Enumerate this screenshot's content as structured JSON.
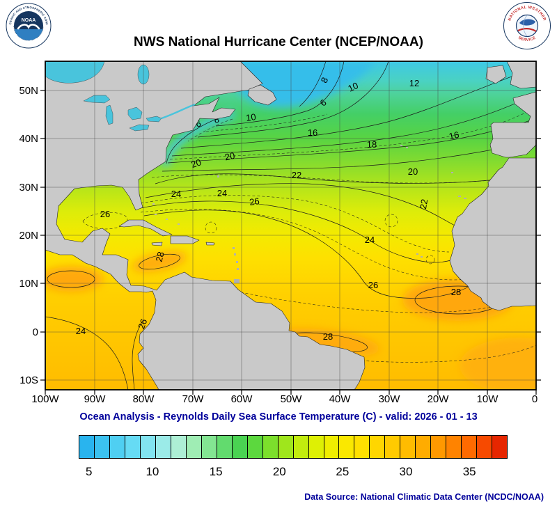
{
  "header": {
    "title": "NWS National Hurricane Center (NCEP/NOAA)",
    "noaa_logo": {
      "label": "NOAA",
      "ring_top": "NATIONAL OCEANIC AND ATMOSPHERIC ADMINISTRATION",
      "ring_bottom": "U.S. DEPARTMENT OF COMMERCE"
    },
    "nws_logo": {
      "ring_top": "NATIONAL WEATHER",
      "ring_bottom": "SERVICE"
    }
  },
  "subtitle": "Ocean Analysis - Reynolds Daily Sea Surface Temperature (C) - valid: 2026 - 01 - 13",
  "footer": {
    "data_source": "Data Source: National Climatic Data Center (NCDC/NOAA)"
  },
  "colors": {
    "annotation_blue": "#00009b",
    "land_gray": "#c9c9c9",
    "lake_blue": "#49c4dc"
  },
  "chart_data": {
    "type": "contour_map",
    "variable": "Sea Surface Temperature",
    "analysis": "Reynolds Daily Ocean Analysis",
    "units": "C",
    "valid_date": "2026 - 01 - 13",
    "contour_interval_c": 2,
    "axes": {
      "lon_ticks": [
        "100W",
        "90W",
        "80W",
        "70W",
        "60W",
        "50W",
        "40W",
        "30W",
        "20W",
        "10W",
        "0"
      ],
      "lat_ticks": [
        "50N",
        "40N",
        "30N",
        "20N",
        "10N",
        "0",
        "10S"
      ]
    },
    "contour_labels": [
      {
        "value": 8,
        "lon": "42.6W",
        "lat": "51.9N"
      },
      {
        "value": 10,
        "lon": "37.0W",
        "lat": "50.1N"
      },
      {
        "value": 12,
        "lon": "24.8W",
        "lat": "50.9N"
      },
      {
        "value": 6,
        "lon": "43.0W",
        "lat": "47.0N"
      },
      {
        "value": 6,
        "lon": "68.7W",
        "lat": "42.5N"
      },
      {
        "value": 8,
        "lon": "65.0W",
        "lat": "43.4N"
      },
      {
        "value": 10,
        "lon": "58.0W",
        "lat": "43.8N"
      },
      {
        "value": 16,
        "lon": "45.5W",
        "lat": "40.6N"
      },
      {
        "value": 18,
        "lon": "33.5W",
        "lat": "38.2N"
      },
      {
        "value": 16,
        "lon": "16.6W",
        "lat": "40.0N"
      },
      {
        "value": 20,
        "lon": "69.1W",
        "lat": "34.3N"
      },
      {
        "value": 20,
        "lon": "62.3W",
        "lat": "35.7N"
      },
      {
        "value": 22,
        "lon": "48.8W",
        "lat": "31.8N"
      },
      {
        "value": 20,
        "lon": "25.1W",
        "lat": "32.5N"
      },
      {
        "value": 22,
        "lon": "22.3W",
        "lat": "26.3N"
      },
      {
        "value": 24,
        "lon": "73.3W",
        "lat": "27.9N"
      },
      {
        "value": 24,
        "lon": "64.0W",
        "lat": "28.1N"
      },
      {
        "value": 26,
        "lon": "57.3W",
        "lat": "26.3N"
      },
      {
        "value": 26,
        "lon": "87.8W",
        "lat": "23.7N"
      },
      {
        "value": 28,
        "lon": "76.0W",
        "lat": "15.4N"
      },
      {
        "value": 24,
        "lon": "33.9W",
        "lat": "18.4N"
      },
      {
        "value": 26,
        "lon": "33.2W",
        "lat": "9.0N"
      },
      {
        "value": 28,
        "lon": "16.3W",
        "lat": "7.6N"
      },
      {
        "value": 24,
        "lon": "92.8W",
        "lat": "0.5S"
      },
      {
        "value": 26,
        "lon": "79.6W",
        "lat": "1.4N"
      },
      {
        "value": 28,
        "lon": "42.4W",
        "lat": "1.7S"
      }
    ],
    "colorbar": {
      "units": "C",
      "ticks": [
        5,
        10,
        15,
        20,
        25,
        30,
        35
      ],
      "range_c": [
        4.5,
        38
      ],
      "colors": [
        "#29b4ee",
        "#3bc2f0",
        "#4fcff2",
        "#66dbf4",
        "#82e4f0",
        "#9bebe8",
        "#adefd5",
        "#9fedb4",
        "#83e592",
        "#62db6e",
        "#4ad352",
        "#5cd83e",
        "#7cdf2c",
        "#9fe61c",
        "#c2ec0e",
        "#def004",
        "#f0ee00",
        "#fae800",
        "#ffe000",
        "#ffd600",
        "#ffca00",
        "#ffbc00",
        "#ffac00",
        "#ff9900",
        "#ff8300",
        "#ff6a00",
        "#f74a00",
        "#e62600"
      ]
    }
  }
}
